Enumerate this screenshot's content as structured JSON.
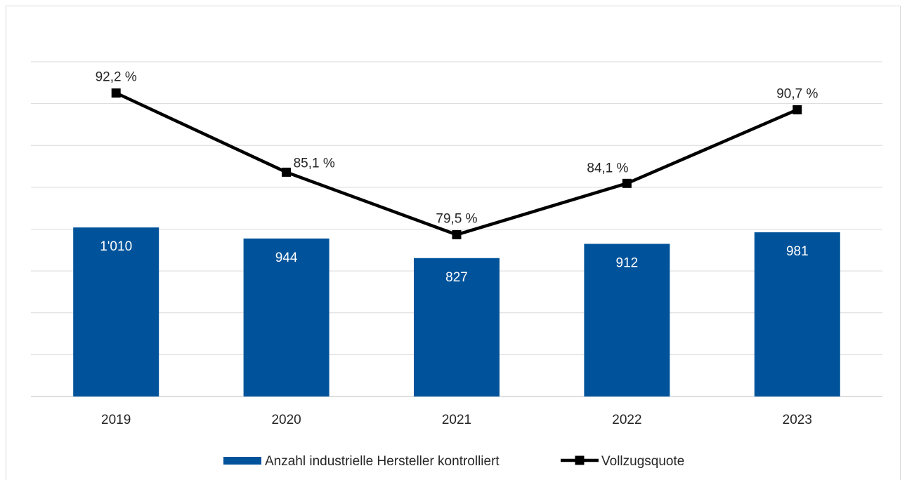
{
  "chart_data": {
    "type": "bar",
    "categories": [
      "2019",
      "2020",
      "2021",
      "2022",
      "2023"
    ],
    "series": [
      {
        "name": "Anzahl industrielle Hersteller kontrolliert",
        "type": "bar",
        "axis": "primary",
        "color": "#00539b",
        "values": [
          1010,
          944,
          827,
          912,
          981
        ],
        "labels": [
          "1'010",
          "944",
          "827",
          "912",
          "981"
        ]
      },
      {
        "name": "Vollzugsquote",
        "type": "line",
        "axis": "secondary",
        "color": "#000000",
        "marker": "square",
        "values": [
          92.2,
          85.1,
          79.5,
          84.1,
          90.7
        ],
        "labels": [
          "92,2 %",
          "85,1 %",
          "79,5 %",
          "84,1 %",
          "90,7 %"
        ]
      }
    ],
    "ylim": [
      0,
      2000
    ],
    "y2lim": [
      65,
      95
    ],
    "grid": true,
    "legend": "bottom"
  }
}
